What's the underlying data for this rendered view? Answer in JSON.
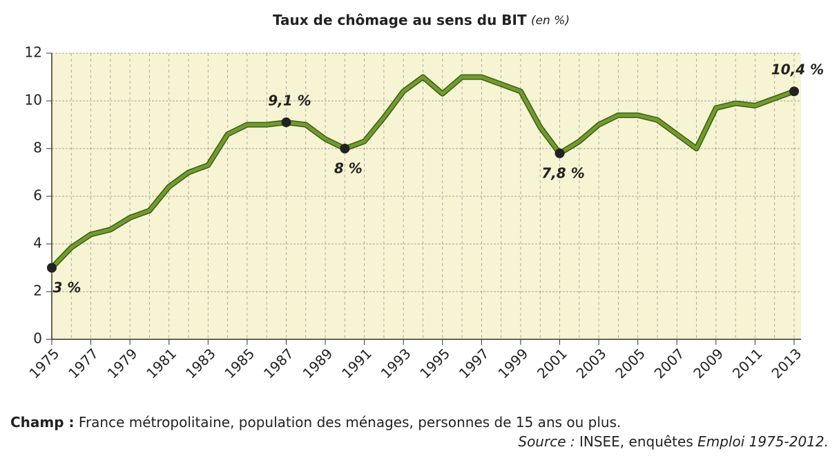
{
  "chart_data": {
    "type": "line",
    "title": "Taux de chômage au sens du BIT",
    "title_unit": "(en %)",
    "x": [
      1975,
      1976,
      1977,
      1978,
      1979,
      1980,
      1981,
      1982,
      1983,
      1984,
      1985,
      1986,
      1987,
      1988,
      1989,
      1990,
      1991,
      1992,
      1993,
      1994,
      1995,
      1996,
      1997,
      1998,
      1999,
      2000,
      2001,
      2002,
      2003,
      2004,
      2005,
      2006,
      2007,
      2008,
      2009,
      2010,
      2011,
      2012,
      2013
    ],
    "series": [
      {
        "name": "Taux de chômage",
        "color": "#6f9c2c",
        "values": [
          3,
          3.85,
          4.4,
          4.6,
          5.1,
          5.4,
          6.4,
          7.0,
          7.3,
          8.6,
          9.0,
          9.0,
          9.1,
          9.0,
          8.4,
          8,
          8.3,
          9.3,
          10.4,
          11.0,
          10.3,
          11.0,
          11.0,
          10.7,
          10.4,
          8.9,
          7.8,
          8.3,
          9.0,
          9.4,
          9.4,
          9.2,
          8.6,
          8.0,
          9.7,
          9.9,
          9.8,
          10.1,
          10.4
        ],
        "value_labels": [
          "3 %",
          null,
          null,
          null,
          null,
          null,
          null,
          null,
          null,
          null,
          null,
          null,
          "9,1 %",
          null,
          null,
          "8 %",
          null,
          null,
          null,
          null,
          null,
          null,
          null,
          null,
          null,
          null,
          "7,8 %",
          null,
          null,
          null,
          null,
          null,
          null,
          null,
          null,
          null,
          null,
          null,
          "10,4 %"
        ]
      }
    ],
    "xlim": [
      1975,
      2013
    ],
    "xticks": [
      1975,
      1977,
      1979,
      1981,
      1983,
      1985,
      1987,
      1989,
      1991,
      1993,
      1995,
      1997,
      1999,
      2001,
      2003,
      2005,
      2007,
      2009,
      2011,
      2013
    ],
    "ylim": [
      0,
      12
    ],
    "yticks": [
      0,
      2,
      4,
      6,
      8,
      10,
      12
    ],
    "grid": true,
    "notes": {
      "champ_label": "Champ :",
      "champ_text": "France métropolitaine, population des ménages, personnes de 15 ans ou plus.",
      "source_label": "Source :",
      "source_text": "INSEE, enquêtes",
      "source_title": "Emploi 1975-2012."
    }
  }
}
